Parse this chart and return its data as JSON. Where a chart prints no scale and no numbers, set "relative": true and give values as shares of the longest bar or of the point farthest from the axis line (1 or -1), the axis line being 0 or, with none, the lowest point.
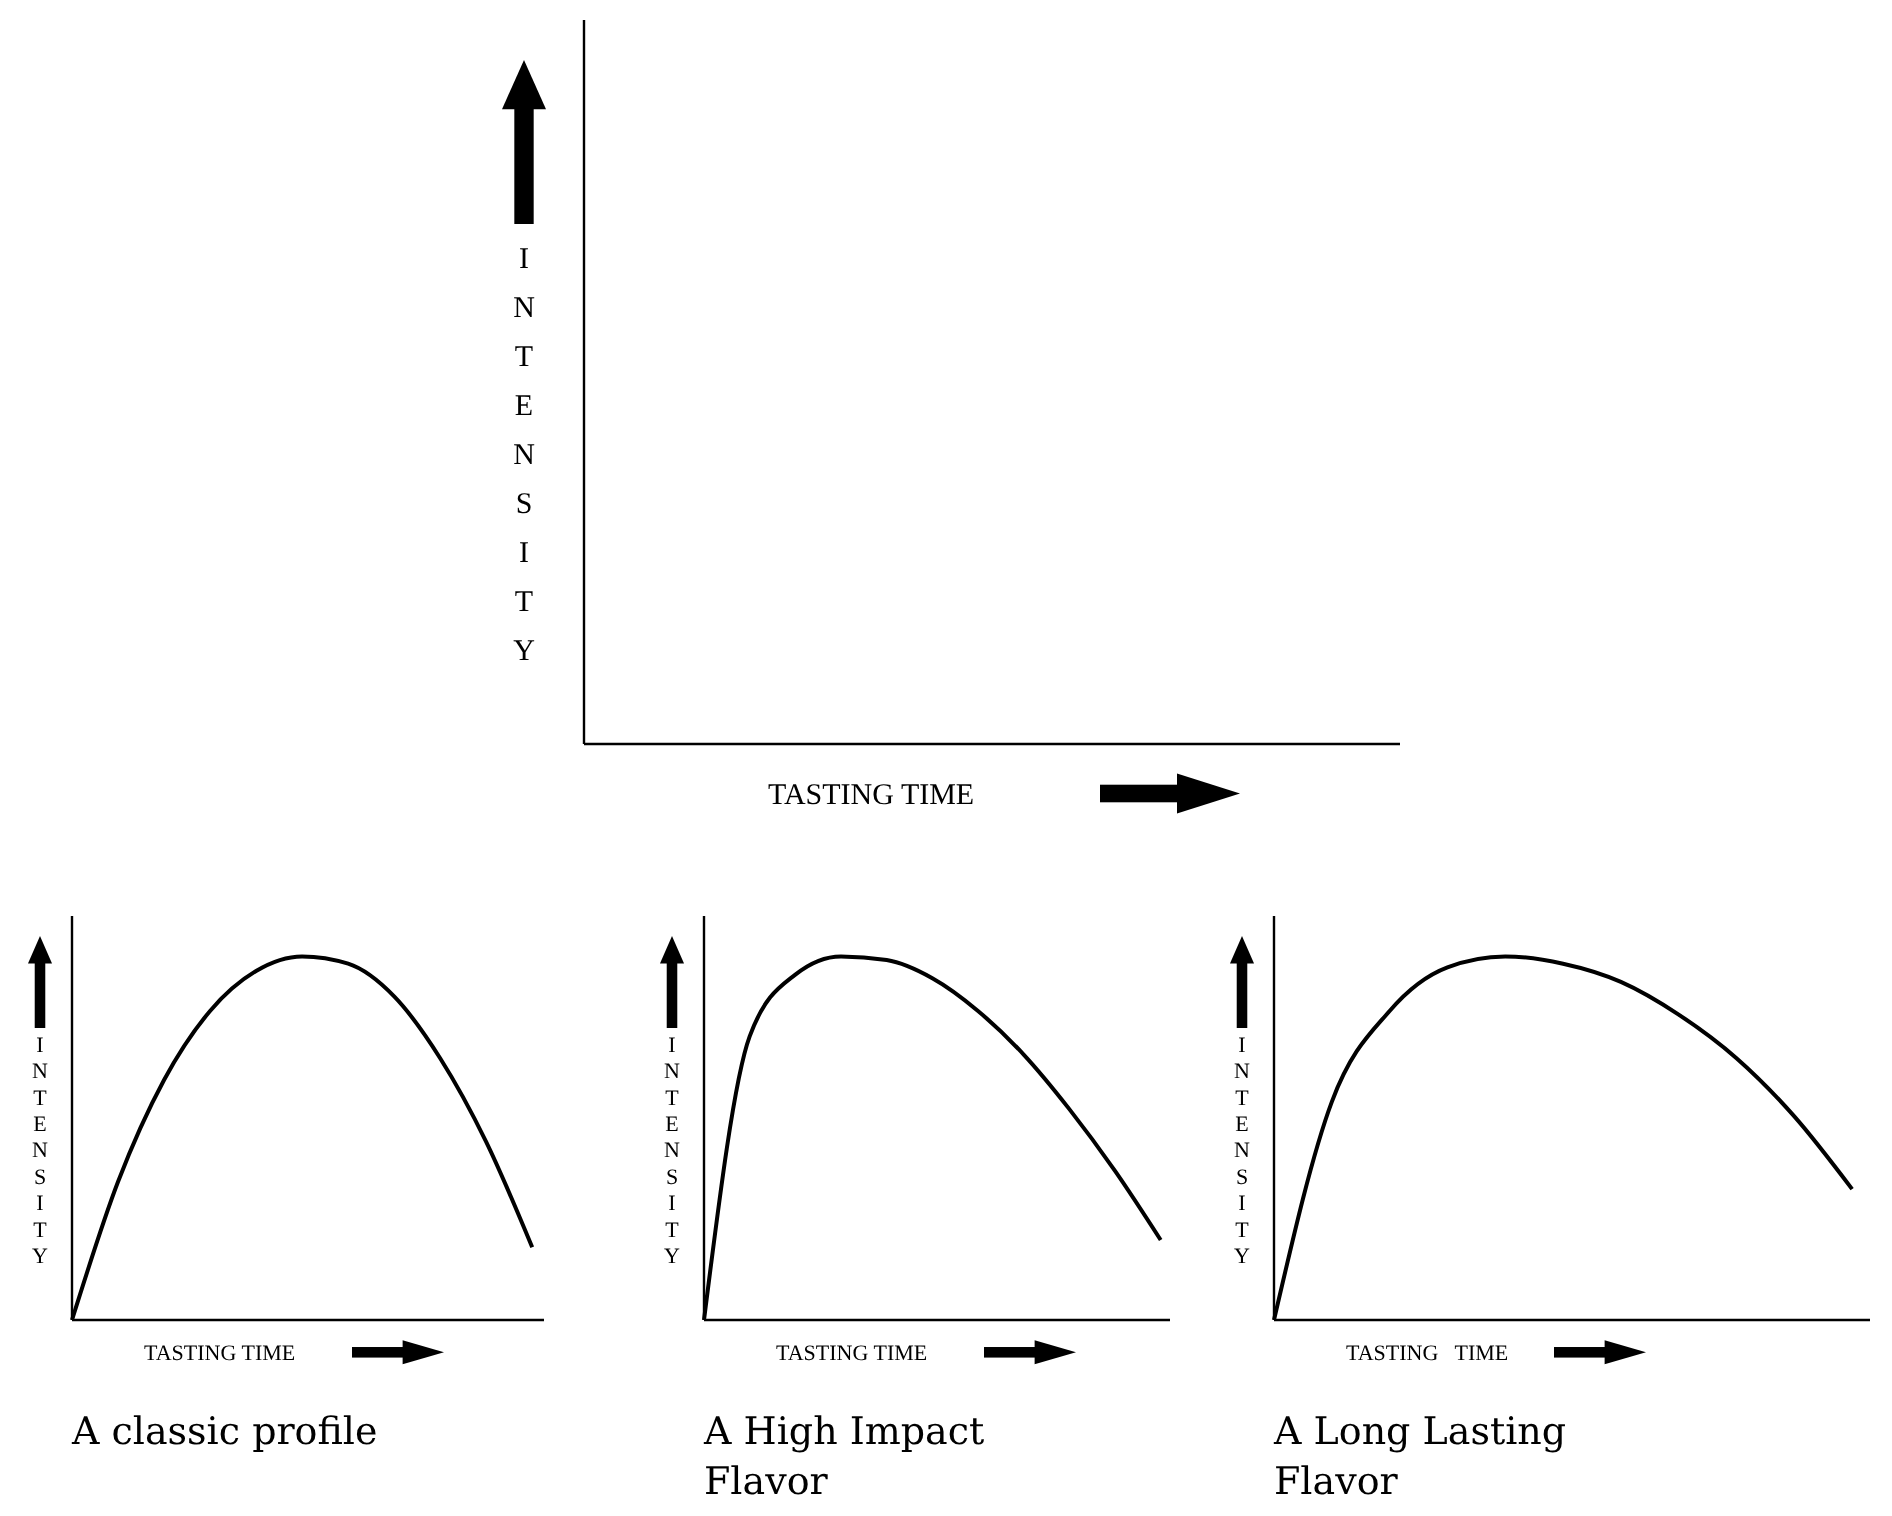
{
  "chart_data": [
    {
      "type": "other",
      "xlabel": "TASTING TIME",
      "ylabel": "INTENSITY"
    },
    {
      "type": "line",
      "title": "A classic profile",
      "xlabel": "TASTING TIME",
      "ylabel": "INTENSITY",
      "relative": true,
      "categories": [
        null,
        null,
        null,
        null,
        null,
        null,
        null,
        null,
        null,
        null,
        null
      ],
      "series": [
        {
          "color": "#000000",
          "values": [
            0,
            0.38,
            0.66,
            0.85,
            0.96,
            1.0,
            0.98,
            0.89,
            0.72,
            0.49,
            0.2
          ]
        }
      ]
    },
    {
      "type": "line",
      "title": "A High Impact Flavor",
      "xlabel": "TASTING TIME",
      "ylabel": "INTENSITY",
      "relative": true,
      "categories": [
        null,
        null,
        null,
        null,
        null,
        null,
        null,
        null,
        null,
        null,
        null
      ],
      "series": [
        {
          "color": "#000000",
          "values": [
            0,
            0.78,
            0.95,
            1.0,
            0.99,
            0.94,
            0.85,
            0.73,
            0.58,
            0.41,
            0.22
          ]
        }
      ]
    },
    {
      "type": "line",
      "title": "A Long Lasting Flavor",
      "xlabel": "TASTING   TIME",
      "ylabel": "INTENSITY",
      "relative": true,
      "categories": [
        null,
        null,
        null,
        null,
        null,
        null,
        null,
        null,
        null,
        null,
        null
      ],
      "series": [
        {
          "color": "#000000",
          "values": [
            0,
            0.6,
            0.85,
            0.97,
            1.0,
            0.98,
            0.93,
            0.84,
            0.72,
            0.56,
            0.36
          ]
        }
      ]
    }
  ]
}
